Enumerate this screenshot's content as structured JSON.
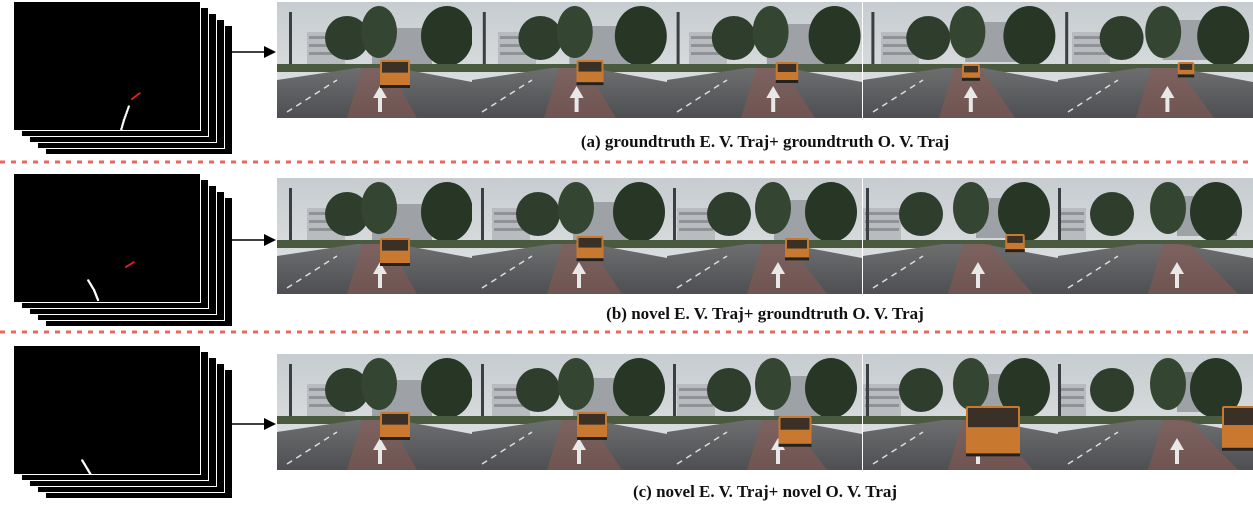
{
  "rows": [
    {
      "id": "a",
      "caption": "(a) groundtruth E. V. Traj+ groundtruth O. V. Traj",
      "ego_traj": [
        [
          106,
          132
        ],
        [
          110,
          118
        ],
        [
          115,
          104
        ]
      ],
      "other_traj": [
        [
          118,
          97
        ],
        [
          126,
          91
        ]
      ],
      "bus": [
        {
          "x": 118,
          "y": 58,
          "s": 1.0
        },
        {
          "x": 118,
          "y": 58,
          "s": 0.9
        },
        {
          "x": 120,
          "y": 60,
          "s": 0.75
        },
        {
          "x": 108,
          "y": 62,
          "s": 0.6
        },
        {
          "x": 128,
          "y": 60,
          "s": 0.55
        }
      ]
    },
    {
      "id": "b",
      "caption": "(b) novel E. V. Traj+ groundtruth O. V. Traj",
      "ego_traj": [
        [
          84,
          126
        ],
        [
          80,
          116
        ],
        [
          74,
          106
        ]
      ],
      "other_traj": [
        [
          112,
          93
        ],
        [
          120,
          88
        ]
      ],
      "bus": [
        {
          "x": 118,
          "y": 60,
          "s": 1.0
        },
        {
          "x": 118,
          "y": 58,
          "s": 0.9
        },
        {
          "x": 130,
          "y": 60,
          "s": 0.8
        },
        {
          "x": 152,
          "y": 56,
          "s": 0.65
        },
        {
          "x": 0,
          "y": 0,
          "s": 0
        }
      ]
    },
    {
      "id": "c",
      "caption": "(c) novel E. V. Traj+ novel O. V. Traj",
      "ego_traj": [
        [
          80,
          134
        ],
        [
          74,
          124
        ],
        [
          68,
          114
        ]
      ],
      "other_traj": [],
      "bus": [
        {
          "x": 118,
          "y": 58,
          "s": 1.0
        },
        {
          "x": 120,
          "y": 58,
          "s": 1.0
        },
        {
          "x": 128,
          "y": 62,
          "s": 1.1
        },
        {
          "x": 130,
          "y": 52,
          "s": 1.8
        },
        {
          "x": 188,
          "y": 52,
          "s": 1.6
        }
      ]
    }
  ],
  "colors": {
    "divider": "#e8675e",
    "ego_traj": "#ffffff",
    "other_traj": "#e02020",
    "bus": "#c9792f"
  }
}
